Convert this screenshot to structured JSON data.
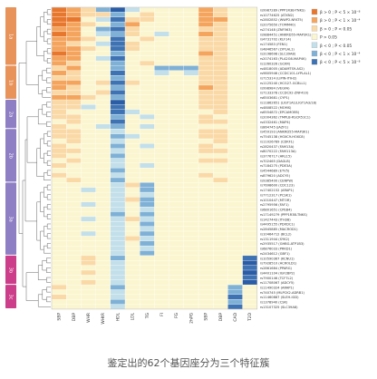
{
  "caption": "鉴定出的62个基因座分为三个特征簇",
  "chart_data": {
    "type": "heatmap",
    "traits": [
      "SBP",
      "DBP",
      "WHR",
      "WHtR",
      "HDL",
      "LDL",
      "TG",
      "FI",
      "FG",
      "2hPG",
      "SBP",
      "DBP",
      "CAD",
      "T2D"
    ],
    "snps": [
      "rs9987289 (PPP1R3B-TNKS)",
      "rs10774625 (ATXN2)",
      "rs2802852 (WWP2-NFAT5)",
      "rs2075650 (TOMM40)",
      "rs274148 (ZNF563)",
      "rs9884451 (ANKRD55-MAP3K1)",
      "rs4731702 (KLF14)",
      "rs174583 (FEN1)",
      "rs4846567 (LYPLAL1)",
      "rs3198698 (SLC39A8)",
      "rs2074163 (PLA2G6-MAP4K)",
      "rs1260326 (GCKR)",
      "rs4818005 (ADAMTS9-AS2)",
      "rs9805946 (CCDC101-LYPLAL1)",
      "rs715314 (LIPIN-ITIH2)",
      "rs1125240 (HCG27-GCBLL1)",
      "rs998984 (VEGFA)",
      "rs7133378 (CCDC92-ZNF410)",
      "rs6503681 (CYP1)",
      "rs11862651 (LIGT1A1/LIGT1A3/18)",
      "rs4808522 (MOMS)",
      "rs6554872 (EPCAMOEB)",
      "rs2004362 (TMPLB-RSCR51C1)",
      "rs4332461 (MAP4)",
      "rs864745 (JAZF1)",
      "rs459193 (ANKRD55-MAP3K1)",
      "rs7545138 (HOXC9-HOXC8)",
      "rs11026789 (CDKF1)",
      "rs2820437 (FAM13A)",
      "rs8070222 (FAM113A)",
      "rs3776717 (ARL15)",
      "rs702465 (DAGLB)",
      "rs7184275 (PDE3A)",
      "rs4544689 (ETV5)",
      "rs879620 (ADCY5)",
      "rs9385400 (CENPW)",
      "rs7698600 (CDC123)",
      "rs17402152 (ARAP1)",
      "rs7712317 (PCSK1)",
      "rs1010447 (MTOR)",
      "rs2795956 (FAF1)",
      "rs6801651 (CPEB4)",
      "rs17149279 (PPP1R3B-TNKS)",
      "rs1427443 (ITH38)",
      "rs4495155 (PDXDC1)",
      "rs2845885 (MACROD1)",
      "rs10464712 (BCL2)",
      "rs1311944 (SYK2)",
      "rs2935517 (GHBG-ATP1B3)",
      "rs6876033 (PRKD1)",
      "rs2434612 (GBF1)",
      "rs10590367 (KCNU1)",
      "rs7928510 (ACROLD1)",
      "rs2861684 (PPARG)",
      "rs4401104 (IGF2BP2)",
      "rs7900146 (TCF7L2)",
      "rs11708067 (ADCY5)",
      "rs11490324 (ARAP1)",
      "rs740745 (MLPCK2-ADRB1)",
      "rs11460887 (SLEH-IGD)",
      "rs1378940 (CSK)",
      "rs13107325 (SLC39A8)"
    ],
    "clusters": [
      {
        "name": "1a",
        "start": 0,
        "end": 11
      },
      {
        "name": "1b",
        "start": 12,
        "end": 18
      },
      {
        "name": "2a",
        "start": 19,
        "end": 24
      },
      {
        "name": "2b",
        "start": 25,
        "end": 35
      },
      {
        "name": "3a",
        "start": 36,
        "end": 50
      },
      {
        "name": "3b",
        "start": 51,
        "end": 56
      },
      {
        "name": "3c",
        "start": 57,
        "end": 61
      }
    ],
    "cluster_colors": [
      "#e8935a",
      "#e8935a",
      "#8e7fc4",
      "#8e7fc4",
      "#8e7fc4",
      "#cc3d8a",
      "#cc3d8a"
    ],
    "values": [
      [
        3,
        2,
        1,
        -2,
        -4,
        -1,
        0,
        0,
        0,
        0,
        2,
        1,
        0,
        0
      ],
      [
        3,
        2,
        1,
        1,
        -2,
        0,
        1,
        0,
        0,
        0,
        2,
        1,
        0,
        0
      ],
      [
        3,
        3,
        0,
        -1,
        -3,
        1,
        1,
        0,
        0,
        0,
        2,
        2,
        0,
        0
      ],
      [
        3,
        2,
        1,
        0,
        -2,
        2,
        0,
        0,
        0,
        0,
        2,
        1,
        0,
        0
      ],
      [
        2,
        2,
        0,
        -2,
        -3,
        1,
        0,
        0,
        0,
        0,
        1,
        1,
        0,
        0
      ],
      [
        3,
        2,
        0,
        -1,
        -2,
        1,
        0,
        -1,
        0,
        0,
        2,
        1,
        0,
        0
      ],
      [
        2,
        2,
        1,
        0,
        -3,
        0,
        1,
        0,
        0,
        0,
        1,
        1,
        0,
        0
      ],
      [
        2,
        1,
        0,
        -1,
        -3,
        1,
        0,
        0,
        0,
        0,
        1,
        1,
        0,
        0
      ],
      [
        2,
        2,
        1,
        0,
        -3,
        1,
        0,
        0,
        0,
        0,
        1,
        1,
        0,
        0
      ],
      [
        3,
        2,
        0,
        0,
        -2,
        0,
        0,
        0,
        0,
        0,
        2,
        1,
        0,
        0
      ],
      [
        2,
        2,
        0,
        -1,
        -3,
        0,
        0,
        0,
        0,
        0,
        1,
        1,
        0,
        0
      ],
      [
        2,
        1,
        0,
        0,
        -2,
        0,
        1,
        0,
        0,
        0,
        1,
        1,
        0,
        0
      ],
      [
        1,
        2,
        0,
        0,
        -2,
        0,
        0,
        -2,
        -2,
        -2,
        1,
        1,
        0,
        0
      ],
      [
        2,
        1,
        0,
        0,
        -3,
        0,
        0,
        -1,
        0,
        -1,
        1,
        1,
        0,
        0
      ],
      [
        1,
        1,
        0,
        0,
        -2,
        0,
        0,
        0,
        0,
        0,
        1,
        1,
        0,
        0
      ],
      [
        2,
        2,
        0,
        1,
        -3,
        1,
        0,
        0,
        0,
        0,
        1,
        1,
        0,
        0
      ],
      [
        2,
        1,
        0,
        0,
        -2,
        0,
        0,
        0,
        0,
        0,
        2,
        1,
        0,
        0
      ],
      [
        1,
        1,
        0,
        1,
        -3,
        0,
        0,
        0,
        0,
        0,
        1,
        1,
        0,
        0
      ],
      [
        2,
        2,
        1,
        0,
        -2,
        0,
        0,
        0,
        0,
        0,
        1,
        1,
        0,
        0
      ],
      [
        1,
        1,
        0,
        0,
        -4,
        0,
        0,
        0,
        0,
        0,
        1,
        1,
        0,
        0
      ],
      [
        1,
        1,
        -1,
        0,
        -3,
        0,
        0,
        0,
        0,
        0,
        1,
        1,
        0,
        0
      ],
      [
        1,
        0,
        0,
        0,
        -3,
        -1,
        0,
        0,
        0,
        0,
        0,
        1,
        0,
        0
      ],
      [
        1,
        1,
        0,
        0,
        -2,
        0,
        -1,
        0,
        0,
        0,
        1,
        0,
        0,
        0
      ],
      [
        0,
        1,
        0,
        0,
        -3,
        0,
        0,
        0,
        0,
        0,
        1,
        1,
        0,
        0
      ],
      [
        1,
        0,
        0,
        -1,
        -2,
        0,
        -1,
        0,
        0,
        0,
        0,
        0,
        0,
        0
      ],
      [
        1,
        1,
        0,
        0,
        -1,
        0,
        0,
        0,
        0,
        0,
        1,
        1,
        0,
        0
      ],
      [
        1,
        1,
        0,
        0,
        -2,
        -1,
        0,
        0,
        0,
        0,
        1,
        1,
        0,
        0
      ],
      [
        0,
        1,
        0,
        0,
        -1,
        0,
        0,
        0,
        0,
        0,
        0,
        1,
        0,
        0
      ],
      [
        1,
        0,
        0,
        0,
        -2,
        0,
        -1,
        0,
        0,
        0,
        1,
        0,
        0,
        0
      ],
      [
        1,
        1,
        0,
        0,
        -1,
        0,
        0,
        0,
        0,
        0,
        1,
        1,
        0,
        0
      ],
      [
        1,
        0,
        0,
        0,
        -2,
        0,
        0,
        0,
        0,
        0,
        0,
        0,
        0,
        0
      ],
      [
        0,
        1,
        0,
        0,
        -1,
        0,
        0,
        0,
        0,
        0,
        1,
        1,
        0,
        0
      ],
      [
        1,
        0,
        0,
        0,
        -1,
        0,
        -1,
        0,
        0,
        0,
        0,
        0,
        0,
        0
      ],
      [
        0,
        0,
        0,
        0,
        -2,
        0,
        0,
        0,
        0,
        0,
        0,
        0,
        0,
        0
      ],
      [
        1,
        0,
        0,
        0,
        -1,
        0,
        0,
        0,
        0,
        0,
        1,
        0,
        0,
        0
      ],
      [
        0,
        1,
        0,
        0,
        -2,
        0,
        0,
        0,
        0,
        0,
        0,
        1,
        0,
        0
      ],
      [
        0,
        0,
        0,
        0,
        -1,
        1,
        -2,
        0,
        0,
        0,
        0,
        0,
        0,
        0
      ],
      [
        0,
        0,
        -1,
        0,
        -1,
        0,
        -2,
        0,
        0,
        0,
        0,
        0,
        0,
        0
      ],
      [
        0,
        0,
        0,
        0,
        -1,
        0,
        -1,
        0,
        0,
        0,
        0,
        0,
        0,
        0
      ],
      [
        0,
        0,
        0,
        0,
        -1,
        1,
        -2,
        0,
        0,
        0,
        0,
        0,
        0,
        0
      ],
      [
        0,
        0,
        -1,
        0,
        -1,
        0,
        -2,
        0,
        0,
        0,
        0,
        0,
        0,
        0
      ],
      [
        0,
        0,
        0,
        0,
        -1,
        0,
        -1,
        0,
        0,
        0,
        0,
        0,
        0,
        0
      ],
      [
        0,
        0,
        0,
        0,
        -2,
        0,
        -2,
        0,
        0,
        0,
        0,
        0,
        0,
        0
      ],
      [
        0,
        0,
        -1,
        0,
        -1,
        1,
        -1,
        0,
        0,
        0,
        0,
        0,
        0,
        0
      ],
      [
        0,
        0,
        0,
        0,
        -1,
        0,
        -2,
        0,
        0,
        0,
        0,
        0,
        0,
        0
      ],
      [
        0,
        0,
        0,
        0,
        -1,
        0,
        -1,
        0,
        0,
        0,
        0,
        0,
        0,
        0
      ],
      [
        0,
        0,
        -1,
        0,
        -1,
        0,
        -2,
        0,
        0,
        0,
        0,
        0,
        0,
        0
      ],
      [
        0,
        0,
        0,
        0,
        -1,
        1,
        -1,
        0,
        0,
        0,
        0,
        0,
        0,
        0
      ],
      [
        0,
        0,
        0,
        0,
        -1,
        0,
        -2,
        0,
        0,
        0,
        0,
        0,
        0,
        0
      ],
      [
        0,
        0,
        0,
        0,
        -1,
        0,
        -1,
        0,
        0,
        0,
        0,
        0,
        0,
        0
      ],
      [
        0,
        0,
        0,
        0,
        -1,
        0,
        -2,
        0,
        0,
        0,
        0,
        0,
        0,
        0
      ],
      [
        0,
        0,
        1,
        0,
        -2,
        0,
        0,
        0,
        0,
        0,
        0,
        0,
        0,
        -3
      ],
      [
        0,
        0,
        1,
        0,
        -1,
        0,
        0,
        0,
        0,
        0,
        0,
        0,
        0,
        -4
      ],
      [
        0,
        0,
        0,
        0,
        -1,
        0,
        0,
        0,
        0,
        0,
        0,
        0,
        0,
        -3
      ],
      [
        0,
        0,
        1,
        0,
        -1,
        0,
        0,
        0,
        0,
        0,
        0,
        0,
        0,
        -4
      ],
      [
        0,
        0,
        0,
        0,
        -1,
        0,
        0,
        0,
        0,
        0,
        0,
        0,
        0,
        -3
      ],
      [
        0,
        0,
        1,
        0,
        -1,
        0,
        0,
        0,
        0,
        0,
        0,
        0,
        0,
        -4
      ],
      [
        1,
        0,
        0,
        0,
        -2,
        0,
        0,
        0,
        0,
        0,
        0,
        0,
        -2,
        0
      ],
      [
        0,
        0,
        0,
        0,
        -1,
        0,
        0,
        0,
        0,
        0,
        0,
        0,
        -2,
        0
      ],
      [
        1,
        0,
        0,
        0,
        -1,
        0,
        0,
        0,
        0,
        0,
        0,
        0,
        -3,
        0
      ],
      [
        0,
        0,
        0,
        0,
        -2,
        0,
        0,
        0,
        0,
        0,
        0,
        0,
        -2,
        0
      ],
      [
        0,
        0,
        0,
        0,
        -1,
        0,
        0,
        0,
        0,
        0,
        0,
        0,
        -3,
        0
      ]
    ],
    "legend": {
      "position": "top-right",
      "items": [
        {
          "label": "β > 0 ; P < 5 × 10⁻⁸",
          "level": 3
        },
        {
          "label": "β > 0 ; P < 1 × 10⁻⁴",
          "level": 2
        },
        {
          "label": "β > 0 ; P < 0.05",
          "level": 1
        },
        {
          "label": "P > 0.05",
          "level": 0
        },
        {
          "label": "β < 0 ; P < 0.05",
          "level": -1
        },
        {
          "label": "β < 0 ; P < 1 × 10⁻⁴",
          "level": -2
        },
        {
          "label": "β < 0 ; P < 5 × 10⁻⁸",
          "level": -3
        }
      ]
    },
    "level_colors": {
      "3": "#e8772e",
      "2": "#f4a45c",
      "1": "#fad9a6",
      "0": "#fbf6cf",
      "-1": "#c2dfea",
      "-2": "#7fb0d6",
      "-3": "#3e72b3",
      "-4": "#2b5ca6"
    }
  }
}
